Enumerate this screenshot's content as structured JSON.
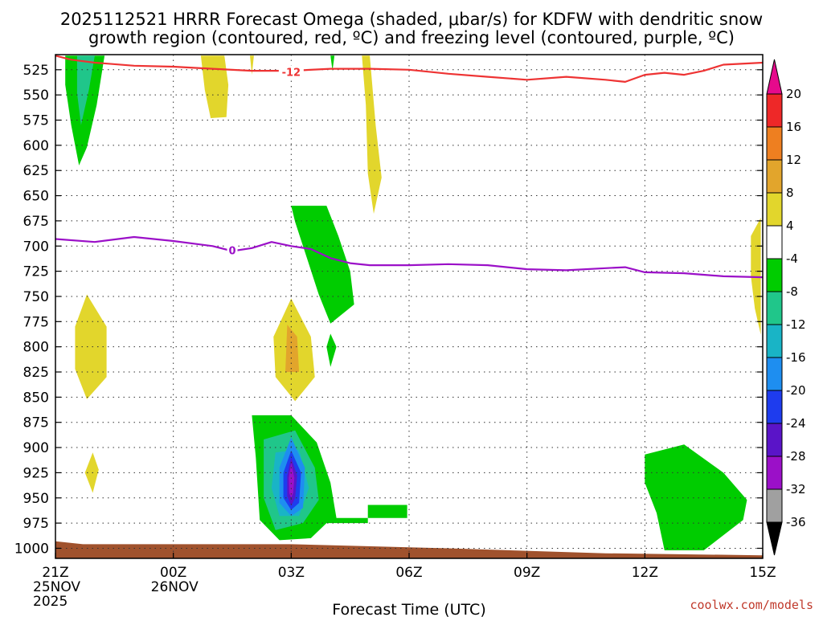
{
  "chart_data": {
    "type": "heatmap",
    "title_line1": "2025112521 HRRR Forecast Omega (shaded, μbar/s) for KDFW with dendritic snow",
    "title_line2": "growth region (contoured, red, ºC) and freezing level (contoured, purple, ºC)",
    "xlabel": "Forecast Time (UTC)",
    "ylabel": "Pressure (hPa)",
    "credit": "coolwx.com/models",
    "x_ticks": [
      {
        "hour": 0,
        "lines": [
          "21Z",
          "25NOV",
          "2025"
        ]
      },
      {
        "hour": 3,
        "lines": [
          "00Z",
          "26NOV"
        ]
      },
      {
        "hour": 6,
        "lines": [
          "03Z"
        ]
      },
      {
        "hour": 9,
        "lines": [
          "06Z"
        ]
      },
      {
        "hour": 12,
        "lines": [
          "09Z"
        ]
      },
      {
        "hour": 15,
        "lines": [
          "12Z"
        ]
      },
      {
        "hour": 18,
        "lines": [
          "15Z"
        ]
      }
    ],
    "x_range_hours": [
      0,
      18
    ],
    "y_ticks": [
      525,
      550,
      575,
      600,
      625,
      650,
      675,
      700,
      725,
      750,
      775,
      800,
      825,
      850,
      875,
      900,
      925,
      950,
      975,
      1000
    ],
    "y_range_hPa": [
      510,
      1010
    ],
    "grid": true,
    "colorbar": {
      "labels": [
        "20",
        "16",
        "12",
        "8",
        "4",
        "-4",
        "-8",
        "-12",
        "-16",
        "-20",
        "-24",
        "-28",
        "-32",
        "-36"
      ],
      "bins": [
        {
          "lo": 16,
          "hi": 20,
          "color": "#ee2828"
        },
        {
          "lo": 12,
          "hi": 16,
          "color": "#ee7f20"
        },
        {
          "lo": 8,
          "hi": 12,
          "color": "#e2a52c"
        },
        {
          "lo": 4,
          "hi": 8,
          "color": "#e2d62c"
        },
        {
          "lo": -4,
          "hi": 4,
          "color": "#ffffff"
        },
        {
          "lo": -8,
          "hi": -4,
          "color": "#00cc00"
        },
        {
          "lo": -12,
          "hi": -8,
          "color": "#20c68a"
        },
        {
          "lo": -16,
          "hi": -12,
          "color": "#19b4c6"
        },
        {
          "lo": -20,
          "hi": -16,
          "color": "#1e8ef0"
        },
        {
          "lo": -24,
          "hi": -20,
          "color": "#1e3cee"
        },
        {
          "lo": -28,
          "hi": -24,
          "color": "#5a14c8"
        },
        {
          "lo": -32,
          "hi": -28,
          "color": "#9b10c8"
        },
        {
          "lo": -36,
          "hi": -32,
          "color": "#a0a0a0"
        }
      ],
      "top_arrow_color": "#e60a8c",
      "bottom_arrow_color": "#000000"
    },
    "shaded_regions": [
      {
        "value_bin": "-8 to -4",
        "color": "#00cc00",
        "points": [
          [
            0.25,
            511
          ],
          [
            1.25,
            511
          ],
          [
            1.05,
            560
          ],
          [
            0.8,
            602
          ],
          [
            0.6,
            620
          ],
          [
            0.4,
            580
          ],
          [
            0.25,
            540
          ]
        ]
      },
      {
        "value_bin": "-12 to -8",
        "color": "#20c68a",
        "points": [
          [
            0.55,
            511
          ],
          [
            1.0,
            511
          ],
          [
            0.85,
            545
          ],
          [
            0.65,
            580
          ],
          [
            0.55,
            548
          ]
        ]
      },
      {
        "value_bin": "4 to 8",
        "color": "#e2d62c",
        "points": [
          [
            3.7,
            511
          ],
          [
            4.3,
            511
          ],
          [
            4.4,
            540
          ],
          [
            4.35,
            572
          ],
          [
            3.95,
            573
          ],
          [
            3.8,
            545
          ]
        ]
      },
      {
        "value_bin": "4 to 8",
        "color": "#e2d62c",
        "points": [
          [
            4.95,
            511
          ],
          [
            5.05,
            511
          ],
          [
            5.0,
            530
          ]
        ]
      },
      {
        "value_bin": "4 to 8",
        "color": "#e2d62c",
        "points": [
          [
            7.8,
            511
          ],
          [
            8.0,
            511
          ],
          [
            8.15,
            580
          ],
          [
            8.3,
            632
          ],
          [
            8.1,
            668
          ],
          [
            7.95,
            628
          ],
          [
            7.9,
            560
          ]
        ]
      },
      {
        "value_bin": "-8 to -4",
        "color": "#00cc00",
        "points": [
          [
            7.0,
            511
          ],
          [
            7.1,
            511
          ],
          [
            7.05,
            526
          ]
        ]
      },
      {
        "value_bin": "-8 to -4",
        "color": "#00cc00",
        "points": [
          [
            6.0,
            660
          ],
          [
            6.9,
            660
          ],
          [
            7.2,
            690
          ],
          [
            7.5,
            725
          ],
          [
            7.6,
            758
          ],
          [
            7.0,
            777
          ],
          [
            6.7,
            748
          ],
          [
            6.4,
            712
          ],
          [
            6.1,
            676
          ]
        ]
      },
      {
        "value_bin": "4 to 8",
        "color": "#e2d62c",
        "points": [
          [
            17.7,
            690
          ],
          [
            17.95,
            672
          ],
          [
            17.95,
            788
          ],
          [
            17.8,
            762
          ],
          [
            17.7,
            730
          ]
        ]
      },
      {
        "value_bin": "4 to 8",
        "color": "#e2d62c",
        "points": [
          [
            0.8,
            748
          ],
          [
            1.3,
            780
          ],
          [
            1.3,
            830
          ],
          [
            0.8,
            852
          ],
          [
            0.5,
            822
          ],
          [
            0.5,
            780
          ]
        ]
      },
      {
        "value_bin": "4 to 8",
        "color": "#e2d62c",
        "points": [
          [
            6.0,
            752
          ],
          [
            6.5,
            790
          ],
          [
            6.6,
            830
          ],
          [
            6.1,
            854
          ],
          [
            5.6,
            830
          ],
          [
            5.55,
            790
          ]
        ]
      },
      {
        "value_bin": "8 to 12",
        "color": "#e2a52c",
        "points": [
          [
            5.9,
            778
          ],
          [
            6.15,
            790
          ],
          [
            6.2,
            825
          ],
          [
            5.85,
            825
          ]
        ]
      },
      {
        "value_bin": "-8 to -4",
        "color": "#00cc00",
        "points": [
          [
            7.0,
            787
          ],
          [
            7.15,
            800
          ],
          [
            7.0,
            820
          ],
          [
            6.9,
            800
          ]
        ]
      },
      {
        "value_bin": "4 to 8",
        "color": "#e2d62c",
        "points": [
          [
            0.95,
            905
          ],
          [
            1.1,
            922
          ],
          [
            0.95,
            945
          ],
          [
            0.75,
            925
          ]
        ]
      },
      {
        "value_bin": "-8 to -4",
        "color": "#00cc00",
        "points": [
          [
            5.0,
            868
          ],
          [
            6.0,
            868
          ],
          [
            6.65,
            895
          ],
          [
            7.0,
            935
          ],
          [
            7.15,
            970
          ],
          [
            8.95,
            970
          ],
          [
            8.95,
            957
          ],
          [
            7.95,
            957
          ],
          [
            7.95,
            975
          ],
          [
            6.9,
            975
          ],
          [
            6.5,
            990
          ],
          [
            5.7,
            992
          ],
          [
            5.2,
            972
          ],
          [
            5.1,
            910
          ]
        ]
      },
      {
        "value_bin": "-12 to -8",
        "color": "#20c68a",
        "points": [
          [
            5.3,
            892
          ],
          [
            6.1,
            883
          ],
          [
            6.6,
            920
          ],
          [
            6.7,
            952
          ],
          [
            6.3,
            975
          ],
          [
            5.6,
            982
          ],
          [
            5.3,
            950
          ]
        ]
      },
      {
        "value_bin": "-16 to -12",
        "color": "#19b4c6",
        "points": [
          [
            5.6,
            905
          ],
          [
            6.2,
            902
          ],
          [
            6.45,
            940
          ],
          [
            6.2,
            968
          ],
          [
            5.7,
            968
          ],
          [
            5.5,
            940
          ]
        ]
      },
      {
        "value_bin": "-20 to -16",
        "color": "#1e8ef0",
        "points": [
          [
            6.0,
            890
          ],
          [
            6.35,
            920
          ],
          [
            6.3,
            960
          ],
          [
            6.0,
            968
          ],
          [
            5.7,
            955
          ],
          [
            5.7,
            920
          ]
        ]
      },
      {
        "value_bin": "-24 to -20",
        "color": "#1e3cee",
        "points": [
          [
            6.0,
            903
          ],
          [
            6.25,
            925
          ],
          [
            6.2,
            955
          ],
          [
            6.0,
            962
          ],
          [
            5.8,
            950
          ],
          [
            5.8,
            925
          ]
        ]
      },
      {
        "value_bin": "-28 to -24",
        "color": "#5a14c8",
        "points": [
          [
            6.0,
            910
          ],
          [
            6.15,
            928
          ],
          [
            6.1,
            950
          ],
          [
            6.0,
            958
          ],
          [
            5.9,
            948
          ],
          [
            5.9,
            928
          ]
        ]
      },
      {
        "value_bin": "-32 to -28",
        "color": "#9b10c8",
        "points": [
          [
            6.0,
            915
          ],
          [
            6.08,
            930
          ],
          [
            6.05,
            945
          ],
          [
            6.0,
            950
          ],
          [
            5.95,
            945
          ],
          [
            5.94,
            930
          ]
        ]
      },
      {
        "value_bin": "-8 to -4",
        "color": "#00cc00",
        "points": [
          [
            15.0,
            907
          ],
          [
            16.0,
            897
          ],
          [
            17.0,
            925
          ],
          [
            17.6,
            952
          ],
          [
            17.5,
            972
          ],
          [
            16.5,
            1002
          ],
          [
            15.5,
            1002
          ],
          [
            15.3,
            965
          ],
          [
            15.0,
            935
          ]
        ]
      }
    ],
    "surface_pressure_hPa": [
      {
        "hour": 0,
        "p": 993
      },
      {
        "hour": 0.7,
        "p": 996
      },
      {
        "hour": 6,
        "p": 996
      },
      {
        "hour": 10,
        "p": 1000
      },
      {
        "hour": 14,
        "p": 1005
      },
      {
        "hour": 18,
        "p": 1007
      }
    ],
    "surface_color": "#a0522d",
    "dgz_contour": {
      "value": "-12",
      "color": "#ee3333",
      "points": [
        [
          0,
          511
        ],
        [
          0.4,
          515
        ],
        [
          1.0,
          518
        ],
        [
          2.0,
          521
        ],
        [
          3.0,
          522
        ],
        [
          4.0,
          524
        ],
        [
          5.0,
          526
        ],
        [
          6.0,
          526
        ],
        [
          7.0,
          524
        ],
        [
          8.0,
          524
        ],
        [
          9.0,
          525
        ],
        [
          10.0,
          529
        ],
        [
          11.0,
          532
        ],
        [
          12.0,
          535
        ],
        [
          13.0,
          532
        ],
        [
          14.0,
          535
        ],
        [
          14.5,
          537
        ],
        [
          15.0,
          530
        ],
        [
          15.5,
          528
        ],
        [
          16.0,
          530
        ],
        [
          16.5,
          526
        ],
        [
          17.0,
          520
        ],
        [
          18.0,
          518
        ]
      ]
    },
    "freezing_level_contour": {
      "value": "0",
      "color": "#9b10c8",
      "points": [
        [
          0,
          693
        ],
        [
          1.0,
          696
        ],
        [
          2.0,
          691
        ],
        [
          3.0,
          695
        ],
        [
          4.0,
          700
        ],
        [
          4.5,
          705
        ],
        [
          5.0,
          702
        ],
        [
          5.5,
          696
        ],
        [
          6.0,
          700
        ],
        [
          6.5,
          703
        ],
        [
          7.0,
          712
        ],
        [
          7.5,
          717
        ],
        [
          8.0,
          719
        ],
        [
          9.0,
          719
        ],
        [
          10.0,
          718
        ],
        [
          11.0,
          719
        ],
        [
          12.0,
          723
        ],
        [
          13.0,
          724
        ],
        [
          14.0,
          722
        ],
        [
          14.5,
          721
        ],
        [
          15.0,
          726
        ],
        [
          16.0,
          727
        ],
        [
          17.0,
          730
        ],
        [
          18.0,
          731
        ]
      ]
    },
    "contour_labels": [
      {
        "text": "-12",
        "hour": 6.0,
        "p": 527
      },
      {
        "text": "0",
        "hour": 4.5,
        "p": 704
      }
    ]
  }
}
